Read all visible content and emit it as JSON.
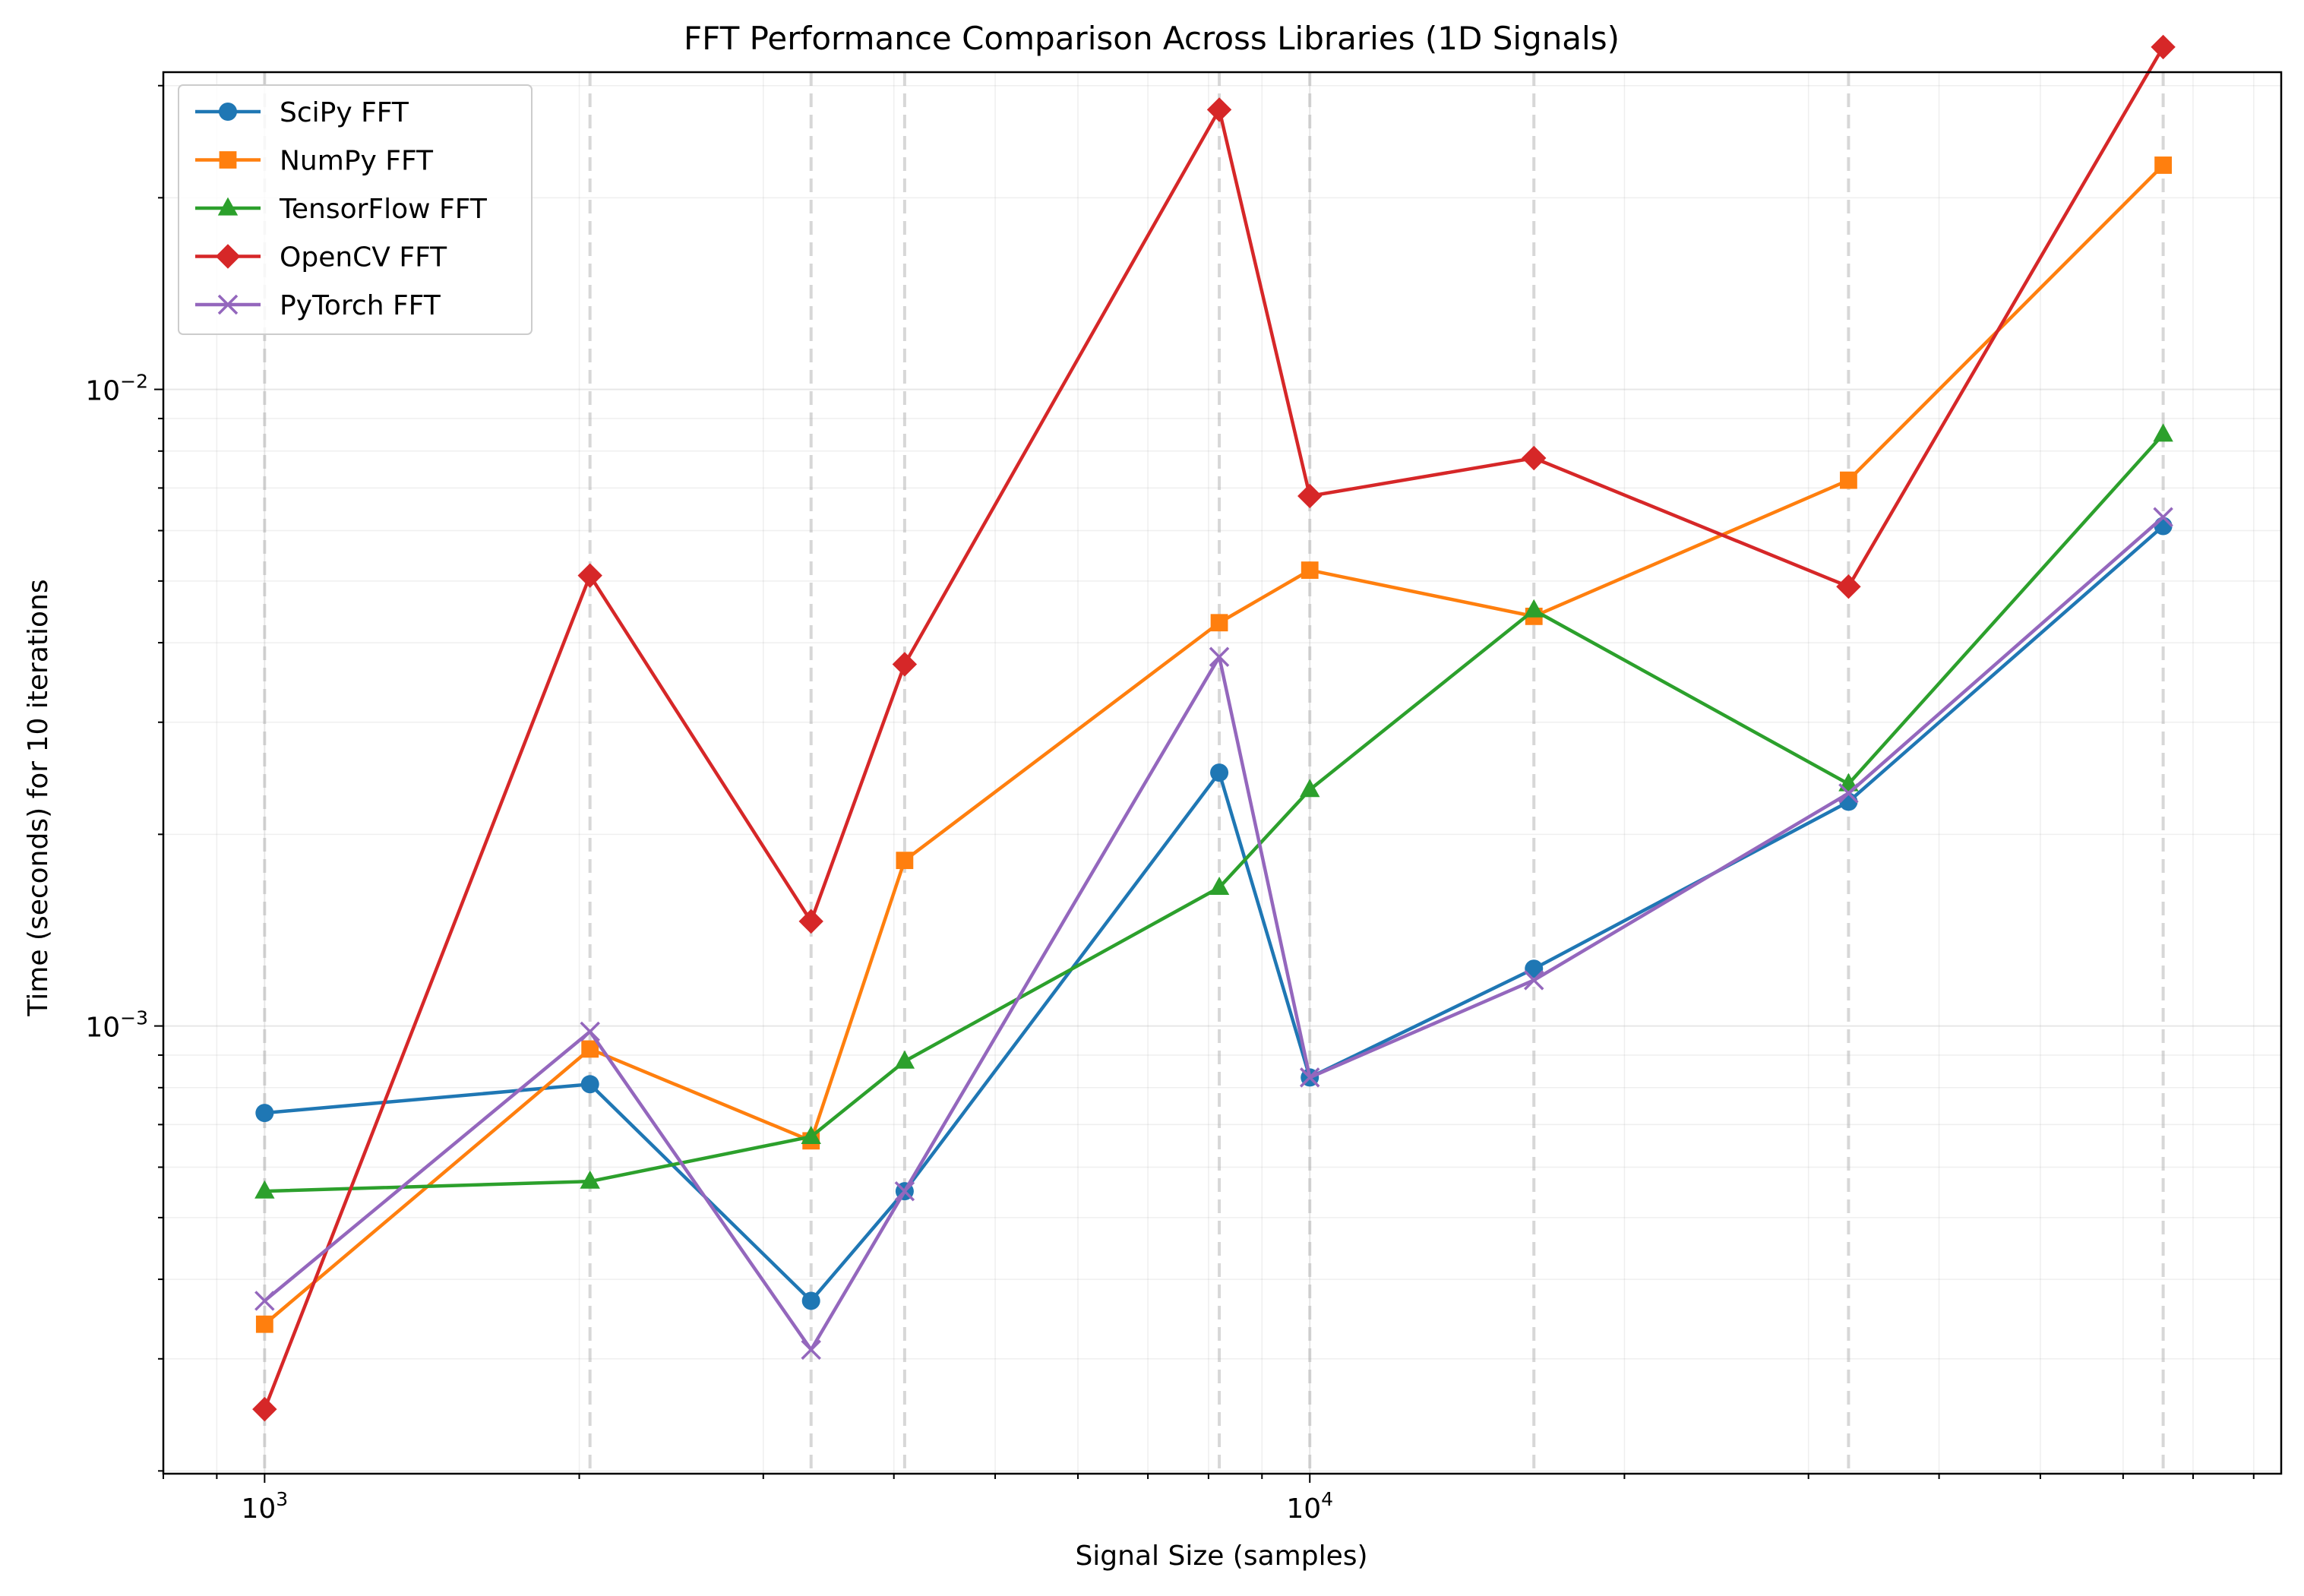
{
  "chart_data": {
    "type": "line",
    "title": "FFT Performance Comparison Across Libraries (1D Signals)",
    "xlabel": "Signal Size (samples)",
    "ylabel": "Time (seconds) for 10 iterations",
    "xscale": "log",
    "yscale": "log",
    "xlim": [
      800,
      85000
    ],
    "ylim": [
      0.000198,
      0.0315
    ],
    "x_tick_labels": [
      {
        "value": 1000,
        "base": "10",
        "exp": "3"
      },
      {
        "value": 10000,
        "base": "10",
        "exp": "4"
      }
    ],
    "y_tick_labels": [
      {
        "value": 0.001,
        "base": "10",
        "exp": "−3"
      },
      {
        "value": 0.01,
        "base": "10",
        "exp": "−2"
      }
    ],
    "grid": true,
    "vertical_reference_lines_at_x": [
      1000,
      2048,
      3333,
      4096,
      8192,
      10000,
      16384,
      32768,
      65536
    ],
    "legend_position": "upper left",
    "x": [
      1000,
      2048,
      3333,
      4096,
      8192,
      10000,
      16384,
      32768,
      65536
    ],
    "series": [
      {
        "name": "SciPy FFT",
        "color": "#1f77b4",
        "marker": "circle",
        "values": [
          0.00073,
          0.00081,
          0.00037,
          0.00055,
          0.0025,
          0.00083,
          0.00123,
          0.00225,
          0.0061
        ]
      },
      {
        "name": "NumPy FFT",
        "color": "#ff7f0e",
        "marker": "square",
        "values": [
          0.00034,
          0.00092,
          0.00066,
          0.00182,
          0.0043,
          0.0052,
          0.0044,
          0.0072,
          0.0225
        ]
      },
      {
        "name": "TensorFlow FFT",
        "color": "#2ca02c",
        "marker": "triangle",
        "values": [
          0.00055,
          0.00057,
          0.00067,
          0.00088,
          0.00165,
          0.00235,
          0.0045,
          0.0024,
          0.0085
        ]
      },
      {
        "name": "OpenCV FFT",
        "color": "#d62728",
        "marker": "diamond",
        "values": [
          0.00025,
          0.0051,
          0.00146,
          0.0037,
          0.0275,
          0.0068,
          0.0078,
          0.0049,
          0.0345
        ]
      },
      {
        "name": "PyTorch FFT",
        "color": "#9467bd",
        "marker": "x",
        "values": [
          0.00037,
          0.00098,
          0.00031,
          0.00055,
          0.0038,
          0.00083,
          0.00118,
          0.00232,
          0.0063
        ]
      }
    ]
  }
}
